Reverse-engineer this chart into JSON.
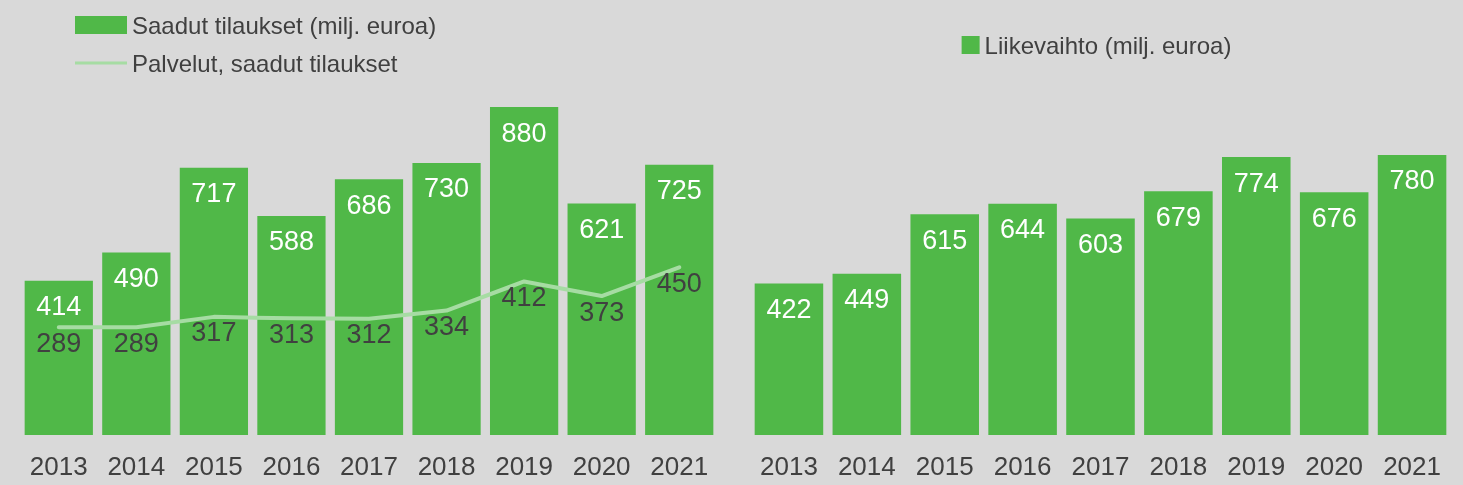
{
  "chart_data": [
    {
      "type": "bar",
      "categories": [
        "2013",
        "2014",
        "2015",
        "2016",
        "2017",
        "2018",
        "2019",
        "2020",
        "2021"
      ],
      "data_labels": true,
      "legend": "top left",
      "marker": "none",
      "series": [
        {
          "name": "Saadut tilaukset (milj. euroa)",
          "color": "#50b848",
          "values": [
            414,
            490,
            717,
            588,
            686,
            730,
            880,
            621,
            725
          ]
        },
        {
          "name": "Palvelut, saadut tilaukset",
          "type": "line",
          "color": "#a6dca3",
          "values": [
            289,
            289,
            317,
            313,
            312,
            334,
            412,
            373,
            450
          ]
        }
      ]
    },
    {
      "type": "bar",
      "categories": [
        "2013",
        "2014",
        "2015",
        "2016",
        "2017",
        "2018",
        "2019",
        "2020",
        "2021"
      ],
      "data_labels": true,
      "legend": "top",
      "series": [
        {
          "name": "Liikevaihto (milj. euroa)",
          "color": "#50b848",
          "values": [
            422,
            449,
            615,
            644,
            603,
            679,
            774,
            676,
            780
          ]
        }
      ]
    }
  ]
}
